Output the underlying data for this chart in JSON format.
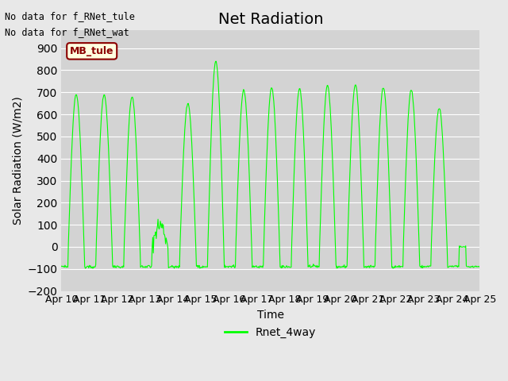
{
  "title": "Net Radiation",
  "xlabel": "Time",
  "ylabel": "Solar Radiation (W/m2)",
  "legend_label": "Rnet_4way",
  "text_no_data_1": "No data for f_RNet_tule",
  "text_no_data_2": "No data for f_RNet_wat",
  "mb_tule_label": "MB_tule",
  "line_color": "#00FF00",
  "ylim": [
    -200,
    980
  ],
  "yticks": [
    -200,
    -100,
    0,
    100,
    200,
    300,
    400,
    500,
    600,
    700,
    800,
    900
  ],
  "bg_color": "#E8E8E8",
  "plot_bg_color": "#D3D3D3",
  "grid_color": "#FFFFFF",
  "title_fontsize": 14,
  "label_fontsize": 10,
  "tick_fontsize": 9,
  "day_peaks": [
    690,
    690,
    680,
    100,
    650,
    840,
    710,
    720,
    715,
    730,
    735,
    720,
    710,
    630,
    0
  ],
  "n_days": 15,
  "pts_per_day": 48
}
